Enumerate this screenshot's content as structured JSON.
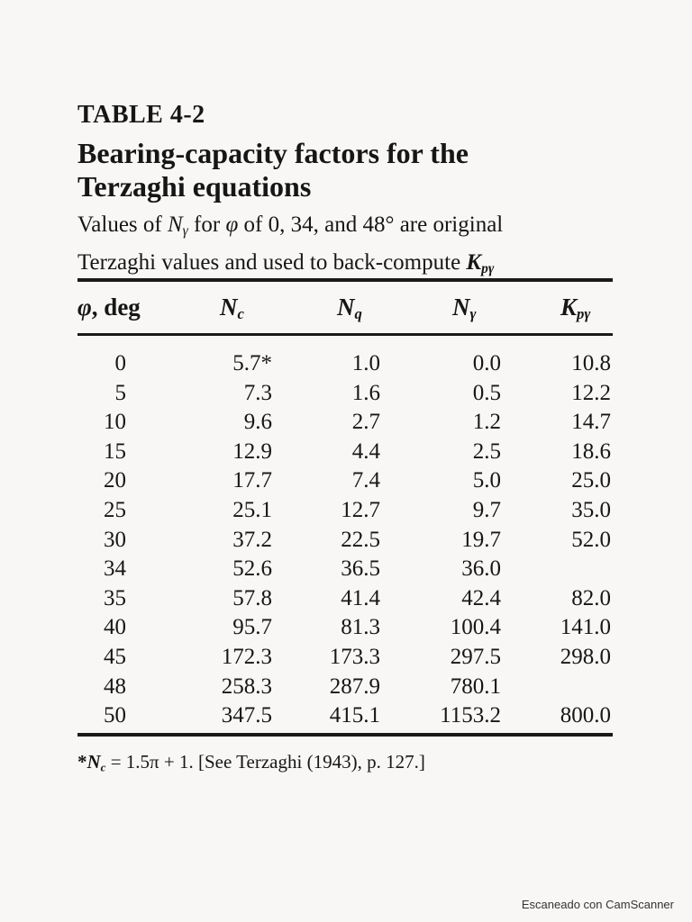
{
  "table": {
    "number": "TABLE 4-2",
    "title_line1": "Bearing-capacity factors for the",
    "title_line2": "Terzaghi equations",
    "subtitle_line1_a": "Values of ",
    "subtitle_line1_b": " for ",
    "subtitle_line1_c": " of 0, 34, and 48",
    "subtitle_line1_d": " are original",
    "subtitle_line2": "Terzaghi values and used to back-compute ",
    "degree_symbol": "°",
    "symbols": {
      "phi": "φ",
      "N": "N",
      "K": "K",
      "sub_c": "c",
      "sub_q": "q",
      "sub_gamma": "γ",
      "sub_pgamma": "pγ"
    },
    "headers": {
      "phi_suffix": ", deg"
    },
    "rows": [
      {
        "phi": "0",
        "nc": "5.7*",
        "nq": "1.0",
        "ng": "0.0",
        "kp": "10.8"
      },
      {
        "phi": "5",
        "nc": "7.3",
        "nq": "1.6",
        "ng": "0.5",
        "kp": "12.2"
      },
      {
        "phi": "10",
        "nc": "9.6",
        "nq": "2.7",
        "ng": "1.2",
        "kp": "14.7"
      },
      {
        "phi": "15",
        "nc": "12.9",
        "nq": "4.4",
        "ng": "2.5",
        "kp": "18.6"
      },
      {
        "phi": "20",
        "nc": "17.7",
        "nq": "7.4",
        "ng": "5.0",
        "kp": "25.0"
      },
      {
        "phi": "25",
        "nc": "25.1",
        "nq": "12.7",
        "ng": "9.7",
        "kp": "35.0"
      },
      {
        "phi": "30",
        "nc": "37.2",
        "nq": "22.5",
        "ng": "19.7",
        "kp": "52.0"
      },
      {
        "phi": "34",
        "nc": "52.6",
        "nq": "36.5",
        "ng": "36.0",
        "kp": ""
      },
      {
        "phi": "35",
        "nc": "57.8",
        "nq": "41.4",
        "ng": "42.4",
        "kp": "82.0"
      },
      {
        "phi": "40",
        "nc": "95.7",
        "nq": "81.3",
        "ng": "100.4",
        "kp": "141.0"
      },
      {
        "phi": "45",
        "nc": "172.3",
        "nq": "173.3",
        "ng": "297.5",
        "kp": "298.0"
      },
      {
        "phi": "48",
        "nc": "258.3",
        "nq": "287.9",
        "ng": "780.1",
        "kp": ""
      },
      {
        "phi": "50",
        "nc": "347.5",
        "nq": "415.1",
        "ng": "1153.2",
        "kp": "800.0"
      }
    ],
    "footnote": {
      "marker": "*",
      "rest": " = 1.5π + 1. [See Terzaghi (1943), p. 127.]"
    }
  },
  "watermark": "Escaneado con CamScanner"
}
